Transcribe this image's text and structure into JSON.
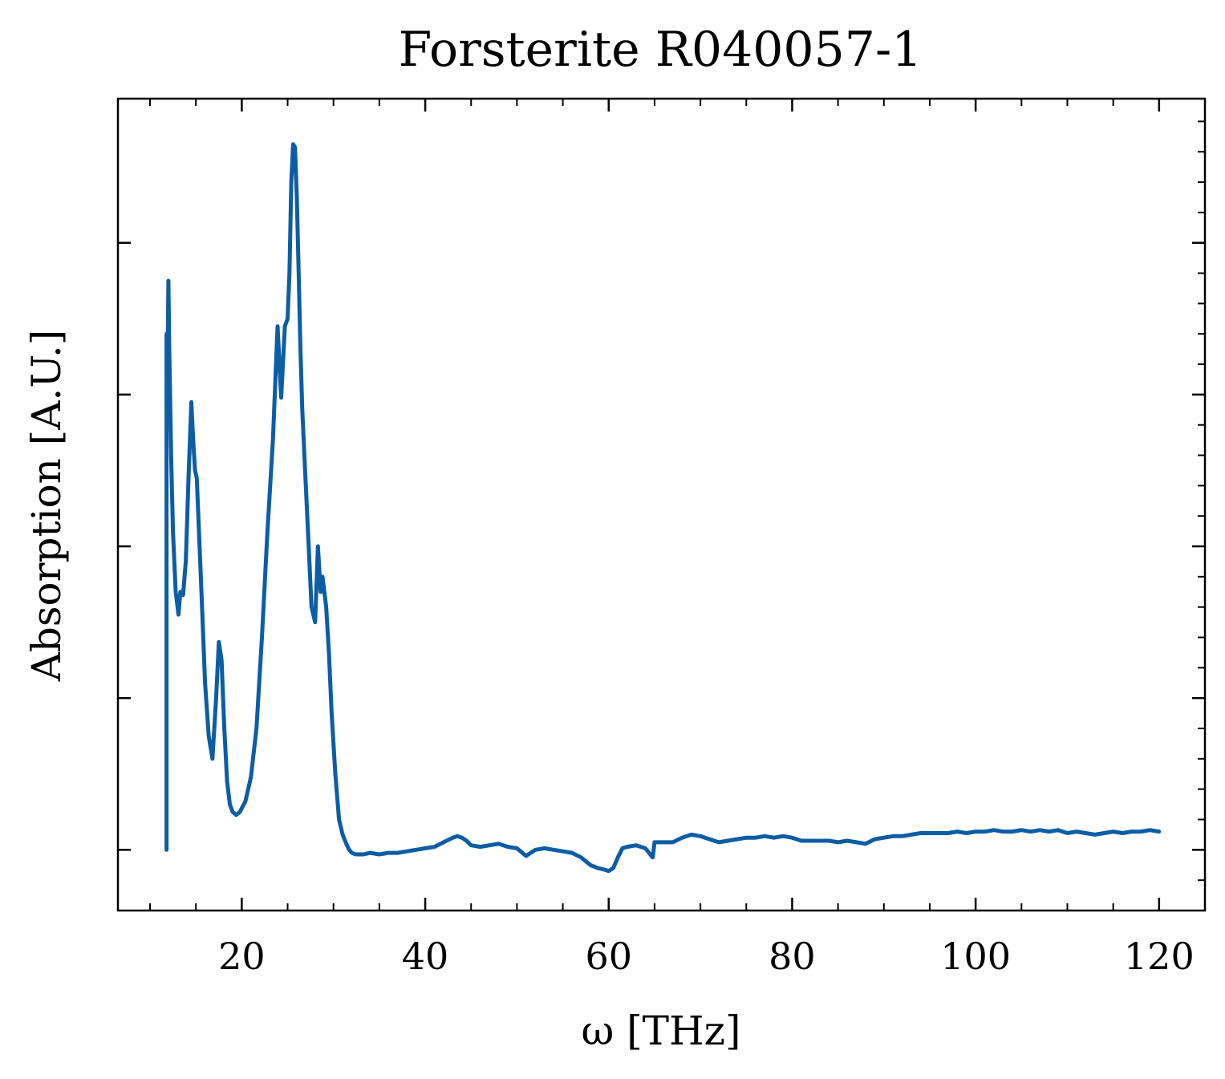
{
  "chart_data": {
    "type": "line",
    "title": "Forsterite R040057-1",
    "xlabel": "ω [THz]",
    "ylabel": "Absorption [A.U.]",
    "xlim": [
      6.5,
      125
    ],
    "ylim": [
      -0.04,
      0.495
    ],
    "x_ticks": [
      20,
      40,
      60,
      80,
      100,
      120
    ],
    "x_minor_ticks": [
      10,
      15,
      25,
      30,
      35,
      45,
      50,
      55,
      65,
      70,
      75,
      85,
      90,
      95,
      105,
      110,
      115
    ],
    "y_ticks": [
      0.0,
      0.1,
      0.2,
      0.3,
      0.4
    ],
    "y_tick_labels_shown": false,
    "grid": false,
    "line_color": "#0C5DA5",
    "series": [
      {
        "x": [
          11.8,
          11.8,
          11.9,
          12.0,
          12.1,
          12.3,
          12.5,
          12.8,
          13.1,
          13.3,
          13.6,
          13.9,
          14.2,
          14.5,
          14.7,
          14.9,
          15.1,
          15.3,
          15.6,
          16.0,
          16.4,
          16.8,
          17.2,
          17.5,
          17.8,
          18.1,
          18.4,
          18.7,
          19.0,
          19.4,
          19.8,
          20.4,
          21.0,
          21.6,
          22.2,
          22.8,
          23.4,
          23.9,
          24.3,
          24.7,
          25.0,
          25.2,
          25.4,
          25.6,
          25.8,
          26.0,
          26.2,
          26.4,
          26.6,
          26.9,
          27.3,
          27.6,
          28.0,
          28.3,
          28.6,
          28.8,
          29.0,
          29.2,
          29.5,
          29.8,
          30.2,
          30.6,
          31.0,
          31.4,
          31.7,
          32.0,
          32.4,
          32.8,
          33.3,
          34.0,
          35.0,
          36.0,
          37.0,
          38.0,
          39.0,
          40.0,
          41.0,
          42.0,
          43.0,
          43.5,
          44.0,
          44.5,
          45.0,
          46.0,
          47.0,
          48.0,
          49.0,
          50.0,
          51.0,
          52.0,
          53.0,
          54.0,
          55.0,
          56.0,
          57.0,
          58.0,
          58.8,
          59.5,
          60.0,
          60.5,
          61.0,
          61.5,
          62.0,
          63.0,
          64.0,
          64.8,
          65.0,
          66.0,
          67.0,
          68.0,
          69.0,
          70.0,
          71.0,
          72.0,
          73.0,
          74.0,
          75.0,
          76.0,
          77.0,
          78.0,
          79.0,
          80.0,
          81.0,
          82.0,
          83.0,
          84.0,
          85.0,
          86.0,
          87.0,
          88.0,
          89.0,
          90.0,
          91.0,
          92.0,
          93.0,
          94.0,
          95.0,
          96.0,
          97.0,
          98.0,
          99.0,
          100.0,
          101.0,
          102.0,
          103.0,
          104.0,
          105.0,
          106.0,
          107.0,
          108.0,
          109.0,
          110.0,
          111.0,
          112.0,
          113.0,
          114.0,
          115.0,
          116.0,
          117.0,
          118.0,
          119.0,
          120.0
        ],
        "y": [
          0.0,
          0.34,
          0.31,
          0.375,
          0.33,
          0.26,
          0.21,
          0.17,
          0.155,
          0.17,
          0.168,
          0.19,
          0.245,
          0.295,
          0.27,
          0.25,
          0.245,
          0.215,
          0.17,
          0.11,
          0.075,
          0.06,
          0.1,
          0.137,
          0.125,
          0.08,
          0.045,
          0.03,
          0.025,
          0.023,
          0.025,
          0.032,
          0.048,
          0.08,
          0.14,
          0.21,
          0.27,
          0.345,
          0.298,
          0.345,
          0.35,
          0.38,
          0.44,
          0.465,
          0.463,
          0.43,
          0.38,
          0.33,
          0.29,
          0.25,
          0.2,
          0.16,
          0.15,
          0.2,
          0.17,
          0.18,
          0.17,
          0.16,
          0.13,
          0.09,
          0.05,
          0.02,
          0.01,
          0.004,
          0.0,
          -0.002,
          -0.003,
          -0.003,
          -0.003,
          -0.002,
          -0.003,
          -0.002,
          -0.002,
          -0.001,
          0.0,
          0.001,
          0.002,
          0.005,
          0.008,
          0.009,
          0.008,
          0.006,
          0.003,
          0.002,
          0.003,
          0.004,
          0.002,
          0.001,
          -0.004,
          0.0,
          0.001,
          0.0,
          -0.001,
          -0.002,
          -0.005,
          -0.01,
          -0.012,
          -0.013,
          -0.014,
          -0.012,
          -0.005,
          0.001,
          0.002,
          0.003,
          0.001,
          -0.005,
          0.005,
          0.005,
          0.005,
          0.008,
          0.01,
          0.009,
          0.007,
          0.005,
          0.006,
          0.007,
          0.008,
          0.008,
          0.009,
          0.008,
          0.009,
          0.008,
          0.006,
          0.006,
          0.006,
          0.006,
          0.005,
          0.006,
          0.005,
          0.004,
          0.007,
          0.008,
          0.009,
          0.009,
          0.01,
          0.011,
          0.011,
          0.011,
          0.011,
          0.012,
          0.011,
          0.012,
          0.012,
          0.013,
          0.012,
          0.012,
          0.013,
          0.012,
          0.013,
          0.012,
          0.013,
          0.011,
          0.012,
          0.011,
          0.01,
          0.011,
          0.012,
          0.011,
          0.012,
          0.012,
          0.013,
          0.012
        ]
      }
    ]
  }
}
